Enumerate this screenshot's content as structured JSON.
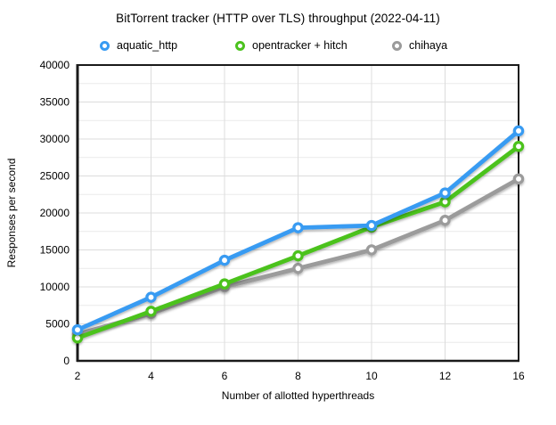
{
  "window": {
    "background": "#ffffff"
  },
  "chart_data": {
    "type": "line",
    "title": "BitTorrent tracker (HTTP over TLS) throughput (2022-04-11)",
    "xlabel": "Number of allotted hyperthreads",
    "ylabel": "Responses per second",
    "x": [
      2,
      4,
      6,
      8,
      10,
      12,
      16
    ],
    "x_tick_labels": [
      "2",
      "4",
      "6",
      "8",
      "10",
      "12",
      "16"
    ],
    "ylim": [
      0,
      40000
    ],
    "y_major_step": 5000,
    "y_minor_step": 2500,
    "grid": true,
    "legend_position": "top",
    "marker": "ring",
    "series": [
      {
        "name": "aquatic_http",
        "color": "#389bf2",
        "values": [
          4200,
          8600,
          13600,
          18000,
          18300,
          22700,
          31100
        ]
      },
      {
        "name": "opentracker + hitch",
        "color": "#4cc21f",
        "values": [
          3100,
          6700,
          10400,
          14200,
          18100,
          21500,
          29000
        ]
      },
      {
        "name": "chihaya",
        "color": "#9b9b9b",
        "values": [
          3600,
          6400,
          10000,
          12500,
          15000,
          19000,
          24600
        ]
      }
    ],
    "axis_color": "#1a1a1a",
    "grid_major_color": "#dcdcdc",
    "grid_minor_color": "#eaeaea",
    "tick_label_color": "#000000"
  }
}
